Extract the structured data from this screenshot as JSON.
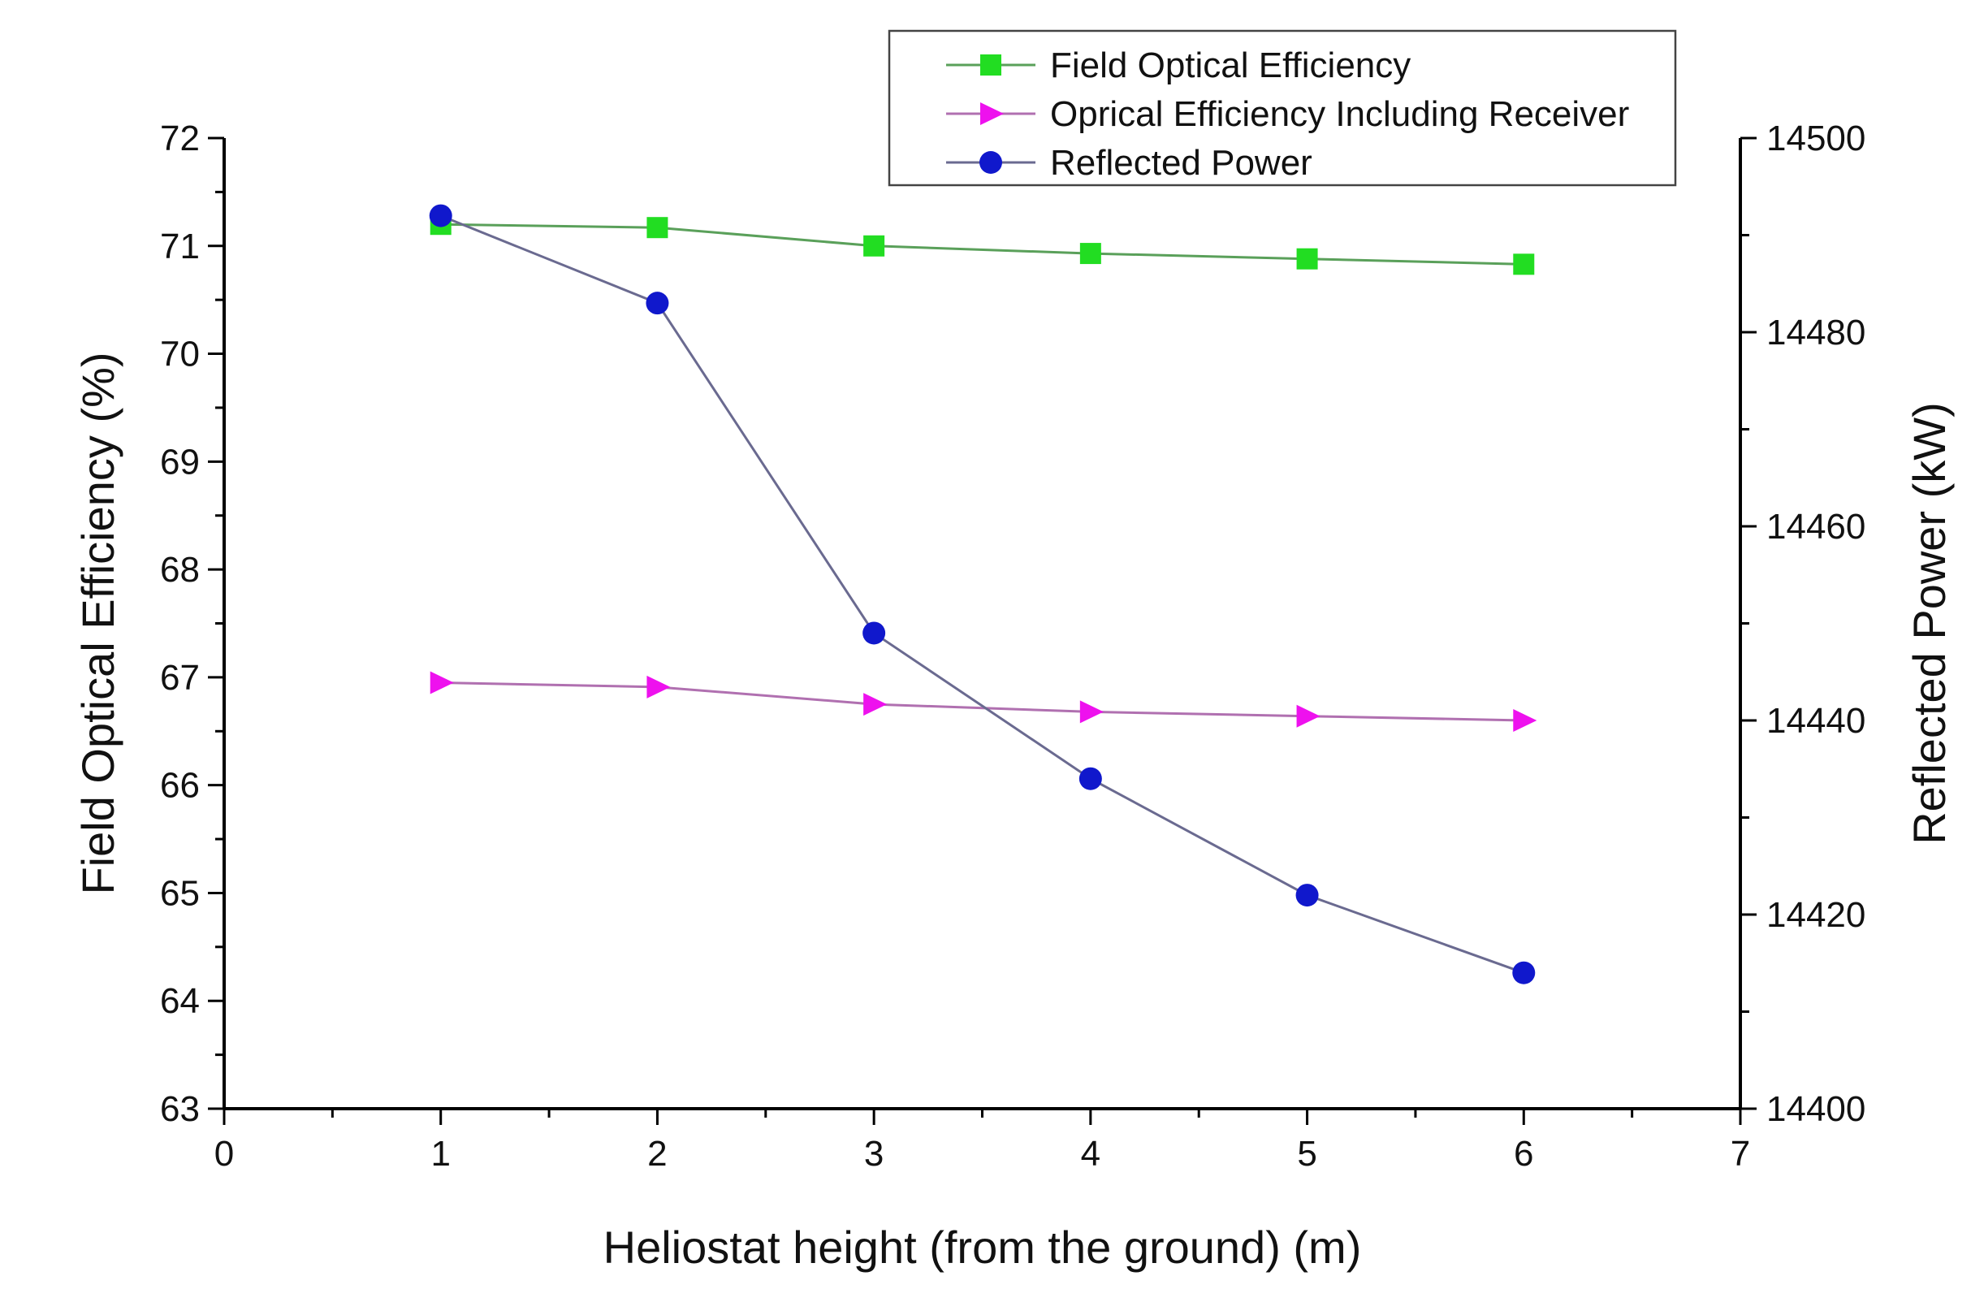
{
  "chart_data": {
    "type": "line",
    "title": "",
    "xlabel": "Heliostat height (from the ground) (m)",
    "ylabel": "Field Optical Efficiency (%)",
    "y2label": "Reflected Power (kW)",
    "xlim": [
      0,
      7
    ],
    "ylim": [
      63,
      72
    ],
    "y2lim": [
      14400,
      14500
    ],
    "x_ticks": [
      "0",
      "1",
      "2",
      "3",
      "4",
      "5",
      "6",
      "7"
    ],
    "y_ticks": [
      "63",
      "64",
      "65",
      "66",
      "67",
      "68",
      "69",
      "70",
      "71",
      "72"
    ],
    "y2_ticks": [
      "14400",
      "14420",
      "14440",
      "14460",
      "14480",
      "14500"
    ],
    "grid": false,
    "legend_position": "top-right",
    "x": [
      1,
      2,
      3,
      4,
      5,
      6
    ],
    "series": [
      {
        "name": "Field Optical Efficiency",
        "axis": "left",
        "marker": "square",
        "marker_color": "#22dd22",
        "line_color": "#5aa05a",
        "values": [
          71.2,
          71.17,
          71.0,
          70.93,
          70.88,
          70.83
        ]
      },
      {
        "name": "Oprical Efficiency Including Receiver",
        "axis": "left",
        "marker": "triangle-right",
        "marker_color": "#ee11ee",
        "line_color": "#b070b0",
        "values": [
          66.95,
          66.91,
          66.75,
          66.68,
          66.64,
          66.6
        ]
      },
      {
        "name": "Reflected Power",
        "axis": "right",
        "marker": "circle",
        "marker_color": "#1018cc",
        "line_color": "#6a6a90",
        "values": [
          14492,
          14483,
          14449,
          14434,
          14422,
          14414
        ]
      }
    ]
  }
}
